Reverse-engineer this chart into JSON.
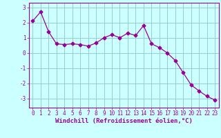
{
  "x": [
    0,
    1,
    2,
    3,
    4,
    5,
    6,
    7,
    8,
    9,
    10,
    11,
    12,
    13,
    14,
    15,
    16,
    17,
    18,
    19,
    20,
    21,
    22,
    23
  ],
  "y": [
    2.1,
    2.7,
    1.4,
    0.6,
    0.55,
    0.6,
    0.55,
    0.45,
    0.65,
    1.0,
    1.2,
    1.0,
    1.3,
    1.15,
    1.8,
    0.6,
    0.35,
    0.0,
    -0.5,
    -1.3,
    -2.1,
    -2.5,
    -2.85,
    -3.1
  ],
  "line_color": "#990099",
  "marker": "D",
  "markersize": 2.5,
  "linewidth": 0.9,
  "background_color": "#ccffff",
  "grid_color": "#99cccc",
  "xlabel": "Windchill (Refroidissement éolien,°C)",
  "xlabel_fontsize": 6.5,
  "xlim": [
    -0.5,
    23.5
  ],
  "ylim": [
    -3.6,
    3.3
  ],
  "xticks": [
    0,
    1,
    2,
    3,
    4,
    5,
    6,
    7,
    8,
    9,
    10,
    11,
    12,
    13,
    14,
    15,
    16,
    17,
    18,
    19,
    20,
    21,
    22,
    23
  ],
  "yticks": [
    3,
    2,
    1,
    0,
    -1,
    -2,
    -3
  ],
  "tick_fontsize": 5.5
}
